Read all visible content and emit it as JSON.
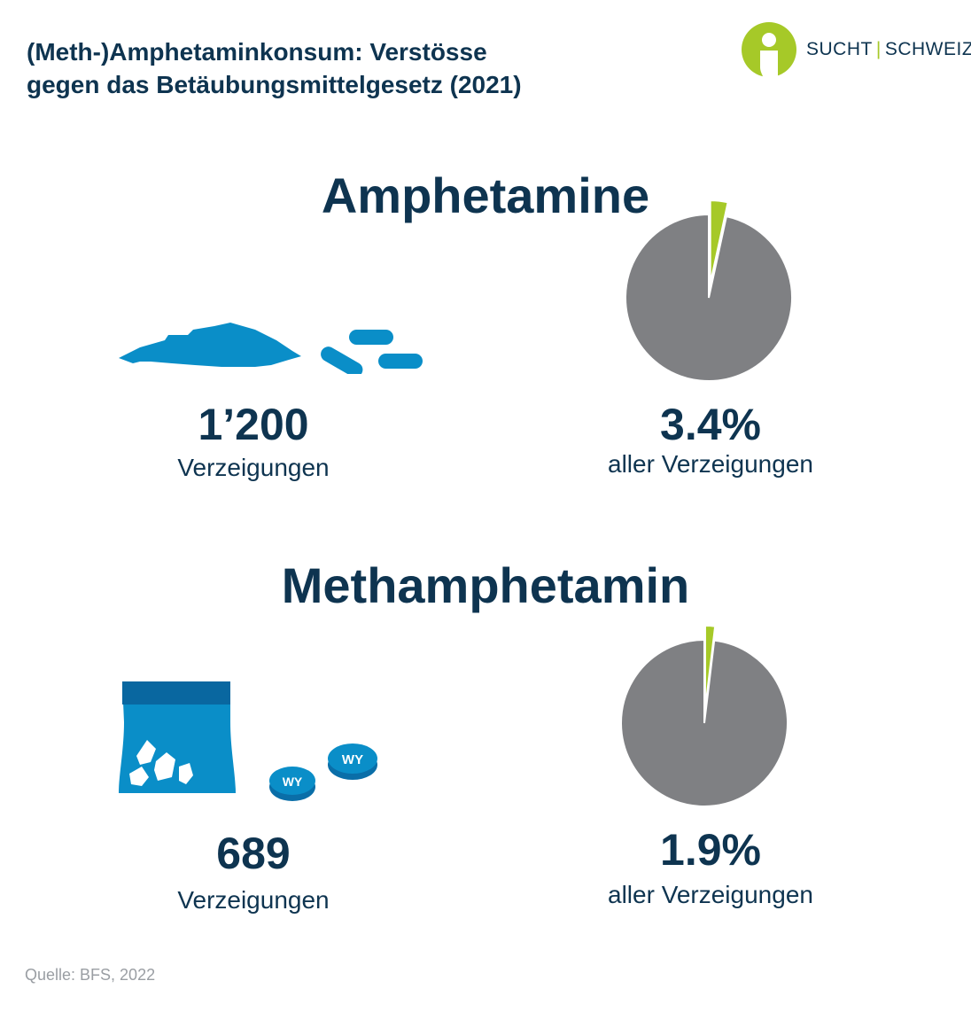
{
  "title": {
    "line1": "(Meth-)Amphetaminkonsum: Verstösse",
    "line2": "gegen das Betäubungsmittelgesetz (2021)"
  },
  "logo": {
    "part1": "SUCHT",
    "separator": "|",
    "part2": "SCHWEIZ"
  },
  "colors": {
    "navy": "#0e3450",
    "blue": "#0a8ec8",
    "green": "#a6c928",
    "grey": "#7f8083"
  },
  "chart_data": [
    {
      "type": "pie",
      "title": "Amphetamine",
      "slices": [
        {
          "label": "Amphetamine",
          "value": 3.4,
          "color": "#a6c928",
          "exploded": true
        },
        {
          "label": "",
          "value": 96.6,
          "color": "#7f8083"
        }
      ],
      "count_value": "1’200",
      "count_label": "Verzeigungen",
      "percent_value": "3.4%",
      "percent_label": "aller Verzeigungen"
    },
    {
      "type": "pie",
      "title": "Methamphetamin",
      "slices": [
        {
          "label": "Methamphetamin",
          "value": 1.9,
          "color": "#a6c928",
          "exploded": true
        },
        {
          "label": "",
          "value": 98.1,
          "color": "#7f8083"
        }
      ],
      "count_value": "689",
      "count_label": "Verzeigungen",
      "percent_value": "1.9%",
      "percent_label": "aller Verzeigungen",
      "pill_text": "WY"
    }
  ],
  "source": "Quelle: BFS, 2022"
}
